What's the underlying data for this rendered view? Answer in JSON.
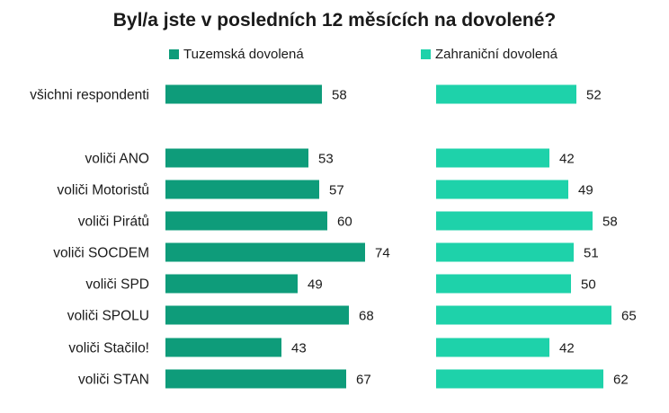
{
  "chart_data": {
    "type": "bar",
    "orientation": "horizontal",
    "title": "Byl/a jste v posledních 12 měsících na dovolené?",
    "categories": [
      "všichni respondenti",
      "voliči ANO",
      "voliči Motoristů",
      "voliči Pirátů",
      "voliči SOCDEM",
      "voliči SPD",
      "voliči SPOLU",
      "voliči Stačilo!",
      "voliči STAN"
    ],
    "series": [
      {
        "name": "Tuzemská dovolená",
        "color": "#0e9c7a",
        "values": [
          58,
          53,
          57,
          60,
          74,
          49,
          68,
          43,
          67
        ]
      },
      {
        "name": "Zahraniční dovolená",
        "color": "#1ed2aa",
        "values": [
          52,
          42,
          49,
          58,
          51,
          50,
          65,
          42,
          62
        ]
      }
    ],
    "xlim": [
      0,
      100
    ],
    "grid": false,
    "legend": "top"
  }
}
